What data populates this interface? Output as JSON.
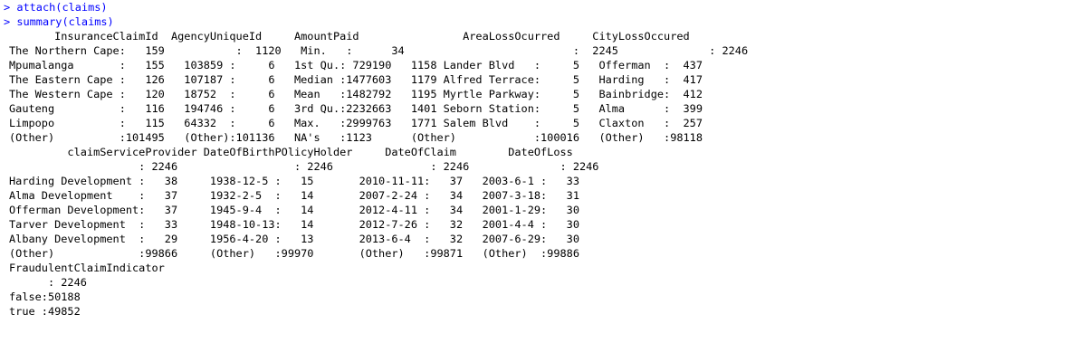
{
  "console": {
    "commands": [
      {
        "prompt": "> ",
        "text": "attach(claims)"
      },
      {
        "prompt": "> ",
        "text": "summary(claims)"
      }
    ],
    "output_lines": [
      "       InsuranceClaimId  AgencyUniqueId     AmountPaid                AreaLossOcurred     CityLossOccured",
      "The Northern Cape:   159           :  1120   Min.   :      34                          :  2245              : 2246",
      "Mpumalanga       :   155   103859 :     6   1st Qu.: 729190   1158 Lander Blvd   :     5   Offerman  :  437",
      "The Eastern Cape :   126   107187 :     6   Median :1477603   1179 Alfred Terrace:     5   Harding   :  417",
      "The Western Cape :   120   18752  :     6   Mean   :1482792   1195 Myrtle Parkway:     5   Bainbridge:  412",
      "Gauteng          :   116   194746 :     6   3rd Qu.:2232663   1401 Seborn Station:     5   Alma      :  399",
      "Limpopo          :   115   64332  :     6   Max.   :2999763   1771 Salem Blvd    :     5   Claxton   :  257",
      "(Other)          :101495   (Other):101136   NA's   :1123      (Other)            :100016   (Other)   :98118",
      "         claimServiceProvider DateOfBirthPOlicyHolder     DateOfClaim        DateOfLoss",
      "                    : 2246                  : 2246               : 2246              : 2246",
      "Harding Development :   38     1938-12-5 :   15       2010-11-11:   37   2003-6-1 :   33",
      "Alma Development    :   37     1932-2-5  :   14       2007-2-24 :   34   2007-3-18:   31",
      "Offerman Development:   37     1945-9-4  :   14       2012-4-11 :   34   2001-1-29:   30",
      "Tarver Development  :   33     1948-10-13:   14       2012-7-26 :   32   2001-4-4 :   30",
      "Albany Development  :   29     1956-4-20 :   13       2013-6-4  :   32   2007-6-29:   30",
      "(Other)             :99866     (Other)   :99970       (Other)   :99871   (Other)  :99886",
      "FraudulentClaimIndicator",
      "      : 2246",
      "false:50188",
      "true :49852"
    ]
  },
  "colors": {
    "command": "#0000ff",
    "output": "#000000",
    "background": "#ffffff"
  }
}
